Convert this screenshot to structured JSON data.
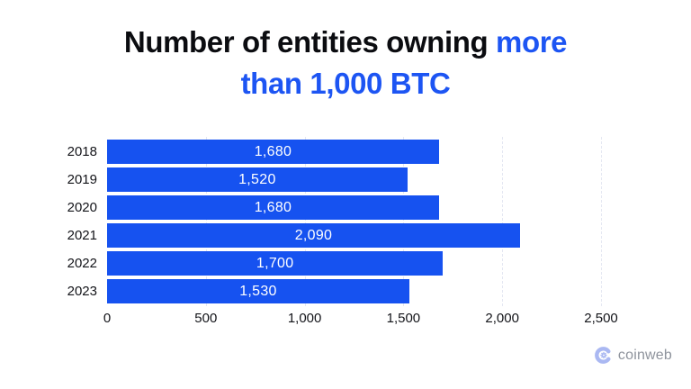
{
  "title": {
    "line1_black": "Number of entities owning ",
    "line1_blue": "more",
    "line2_blue": "than 1,000 BTC"
  },
  "chart_data": {
    "type": "bar",
    "orientation": "horizontal",
    "title": "Number of entities owning more than 1,000 BTC",
    "categories": [
      "2018",
      "2019",
      "2020",
      "2021",
      "2022",
      "2023"
    ],
    "values": [
      1680,
      1520,
      1680,
      2090,
      1700,
      1530
    ],
    "value_labels": [
      "1,680",
      "1,520",
      "1,680",
      "2,090",
      "1,700",
      "1,530"
    ],
    "x_ticks": [
      "0",
      "500",
      "1,000",
      "1,500",
      "2,000",
      "2,500"
    ],
    "x_tick_values": [
      0,
      500,
      1000,
      1500,
      2000,
      2500
    ],
    "xlim": [
      0,
      2500
    ],
    "grid": true,
    "legend": "none",
    "bar_color": "#1652f0",
    "value_label_color": "#ffffff",
    "axis_label_color": "#131419"
  },
  "branding": {
    "logo_text": "coinweb",
    "logo_icon": "coinweb-c-gear-icon",
    "logo_icon_color": "#aab8f2",
    "logo_text_color": "#8e939c"
  },
  "colors": {
    "background": "#ffffff",
    "title_text": "#0b0c10",
    "title_accent": "#1d55f3",
    "gridline": "#e4e7f2"
  }
}
